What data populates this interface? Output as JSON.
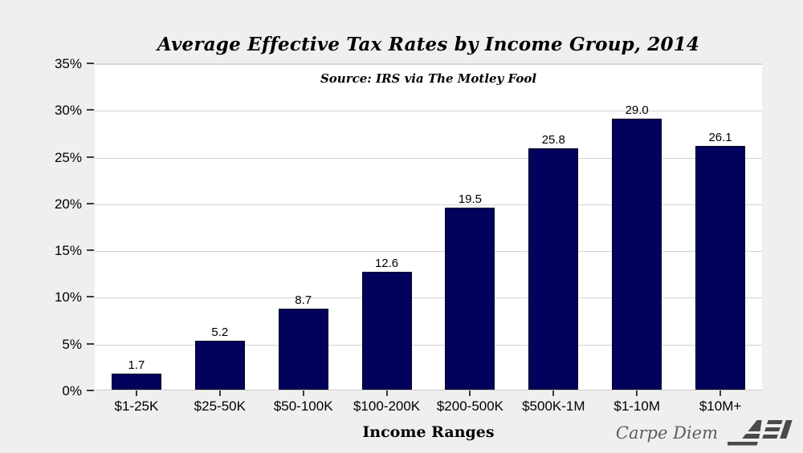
{
  "chart_data": {
    "type": "bar",
    "title": "Average Effective Tax Rates by Income Group, 2014",
    "subtitle": "Source: IRS via The Motley Fool",
    "categories": [
      "$1-25K",
      "$25-50K",
      "$50-100K",
      "$100-200K",
      "$200-500K",
      "$500K-1M",
      "$1-10M",
      "$10M+"
    ],
    "values": [
      1.7,
      5.2,
      8.7,
      12.6,
      19.5,
      25.8,
      29.0,
      26.1
    ],
    "value_labels": [
      "1.7",
      "5.2",
      "8.7",
      "12.6",
      "19.5",
      "25.8",
      "29.0",
      "26.1"
    ],
    "xlabel": "Income Ranges",
    "ylabel": "",
    "ylim": [
      0,
      35
    ],
    "ytick_step": 5,
    "ytick_labels": [
      "0%",
      "5%",
      "10%",
      "15%",
      "20%",
      "25%",
      "30%",
      "35%"
    ],
    "grid": true,
    "legend": "none",
    "bar_color": "#02025c",
    "bar_border_color": "#000022"
  },
  "footer": {
    "carpe_diem": "Carpe Diem",
    "aei": "AEI"
  },
  "colors": {
    "background": "#efefef",
    "plot_background": "#ffffff",
    "gridline": "#d3d3d3",
    "text": "#000000",
    "footer_text": "#5c5c5c",
    "logo": "#4a4a4a"
  }
}
